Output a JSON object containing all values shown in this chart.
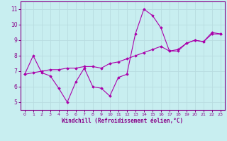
{
  "xlabel": "Windchill (Refroidissement éolien,°C)",
  "background_color": "#c8eef0",
  "grid_color": "#b8dce0",
  "line_color": "#aa00aa",
  "x_line1": [
    0,
    1,
    2,
    3,
    4,
    5,
    6,
    7,
    8,
    9,
    10,
    11,
    12,
    13,
    14,
    15,
    16,
    17,
    18,
    19,
    20,
    21,
    22,
    23
  ],
  "y_line1": [
    6.8,
    8.0,
    6.9,
    6.7,
    5.9,
    5.0,
    6.3,
    7.2,
    6.0,
    5.9,
    5.4,
    6.6,
    6.8,
    9.4,
    11.0,
    10.6,
    9.8,
    8.3,
    8.3,
    8.8,
    9.0,
    8.9,
    9.5,
    9.4
  ],
  "x_line2": [
    0,
    1,
    2,
    3,
    4,
    5,
    6,
    7,
    8,
    9,
    10,
    11,
    12,
    13,
    14,
    15,
    16,
    17,
    18,
    19,
    20,
    21,
    22,
    23
  ],
  "y_line2": [
    6.8,
    6.9,
    7.0,
    7.1,
    7.1,
    7.2,
    7.2,
    7.3,
    7.3,
    7.2,
    7.5,
    7.6,
    7.8,
    8.0,
    8.2,
    8.4,
    8.6,
    8.3,
    8.4,
    8.8,
    9.0,
    8.9,
    9.4,
    9.4
  ],
  "ylim": [
    4.5,
    11.5
  ],
  "xlim": [
    -0.5,
    23.5
  ],
  "yticks": [
    5,
    6,
    7,
    8,
    9,
    10,
    11
  ],
  "xticks": [
    0,
    1,
    2,
    3,
    4,
    5,
    6,
    7,
    8,
    9,
    10,
    11,
    12,
    13,
    14,
    15,
    16,
    17,
    18,
    19,
    20,
    21,
    22,
    23
  ],
  "marker": "D",
  "markersize": 1.8,
  "linewidth": 0.8,
  "tick_fontsize_x": 4.5,
  "tick_fontsize_y": 5.5,
  "xlabel_fontsize": 5.5
}
